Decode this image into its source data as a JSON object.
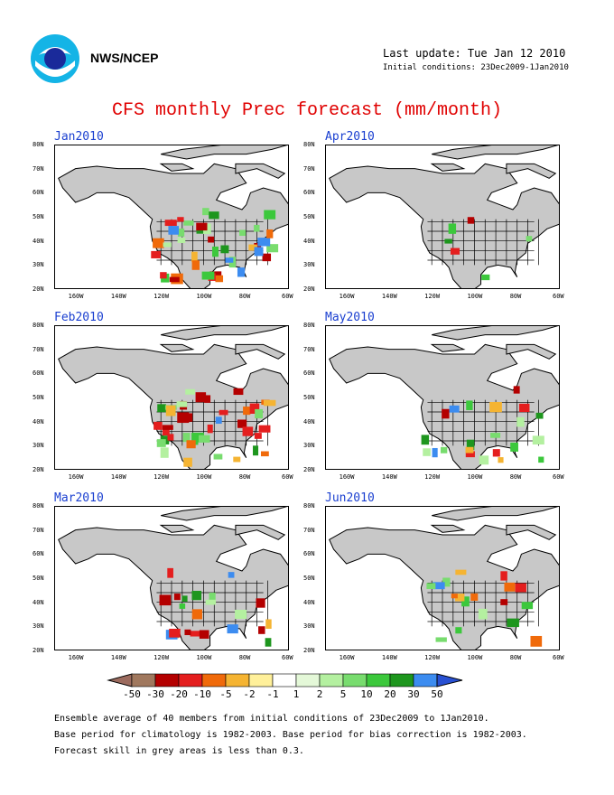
{
  "header": {
    "org": "NWS/NCEP",
    "last_update": "Last update: Tue Jan 12 2010",
    "initial_conditions": "Initial conditions: 23Dec2009-1Jan2010"
  },
  "title": "CFS monthly Prec forecast (mm/month)",
  "latitude_labels": [
    "80N",
    "70N",
    "60N",
    "50N",
    "40N",
    "30N",
    "20N"
  ],
  "longitude_labels": [
    "160W",
    "140W",
    "120W",
    "100W",
    "80W",
    "60W"
  ],
  "panels": [
    {
      "month": "Jan2010"
    },
    {
      "month": "Apr2010"
    },
    {
      "month": "Feb2010"
    },
    {
      "month": "May2010"
    },
    {
      "month": "Mar2010"
    },
    {
      "month": "Jun2010"
    }
  ],
  "legend": {
    "labels": [
      "-50",
      "-30",
      "-20",
      "-10",
      "-5",
      "-2",
      "-1",
      "1",
      "2",
      "5",
      "10",
      "20",
      "30",
      "50"
    ],
    "colors": [
      "#9c6b5e",
      "#a0785e",
      "#b40000",
      "#e41e1e",
      "#f06a0a",
      "#f5b432",
      "#fff09a",
      "#ffffff",
      "#e4f8d8",
      "#b4f0a0",
      "#78dc6e",
      "#3cc83c",
      "#1e961e",
      "#3c8cf0",
      "#2850d2"
    ]
  },
  "notes": [
    "Ensemble average of 40 members from initial conditions of 23Dec2009 to 1Jan2010.",
    "Base period for climatology is 1982-2003. Base period for bias correction is 1982-2003.",
    "Forecast skill in grey areas is less than 0.3."
  ],
  "colors": {
    "land": "#c8c8c8",
    "title": "#e00000",
    "panel_label": "#1a3fd0"
  }
}
